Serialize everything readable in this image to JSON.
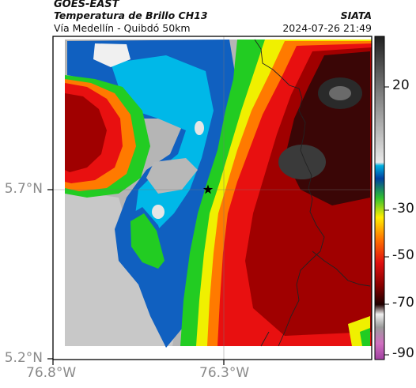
{
  "header": {
    "source": "GOES-EAST",
    "title": "Temperatura de Brillo CH13",
    "subtitle": "Vía Medellín - Quibdó 50km",
    "organization": "SIATA",
    "datetime": "2024-07-26 21:49"
  },
  "axes": {
    "lat_ticks": [
      "5.7°N",
      "5.2°N"
    ],
    "lon_ticks": [
      "76.8°W",
      "76.3°W"
    ]
  },
  "colorbar": {
    "ticks": [
      "20",
      "-30",
      "-50",
      "-70",
      "-90"
    ],
    "colors": [
      "#a040a0",
      "#d070c0",
      "#9a9a9a",
      "#f0f0f0",
      "#200000",
      "#8a0000",
      "#e01010",
      "#ff7000",
      "#ffee00",
      "#30c030",
      "#0040a0",
      "#00b0e0",
      "#e8e8e8",
      "#808080",
      "#202020"
    ]
  },
  "map": {
    "marker": "star",
    "colors": {
      "cold_cloud": "#1a0a0a",
      "very_cold": "#3a3a3a",
      "deep_red": "#a00000",
      "red": "#e81010",
      "orange": "#ff7a00",
      "yellow": "#f0f000",
      "green": "#22cc22",
      "blue": "#1060c0",
      "cyan": "#00b8e8",
      "clear": "#b0b0b0",
      "light": "#e8e8e8"
    }
  }
}
